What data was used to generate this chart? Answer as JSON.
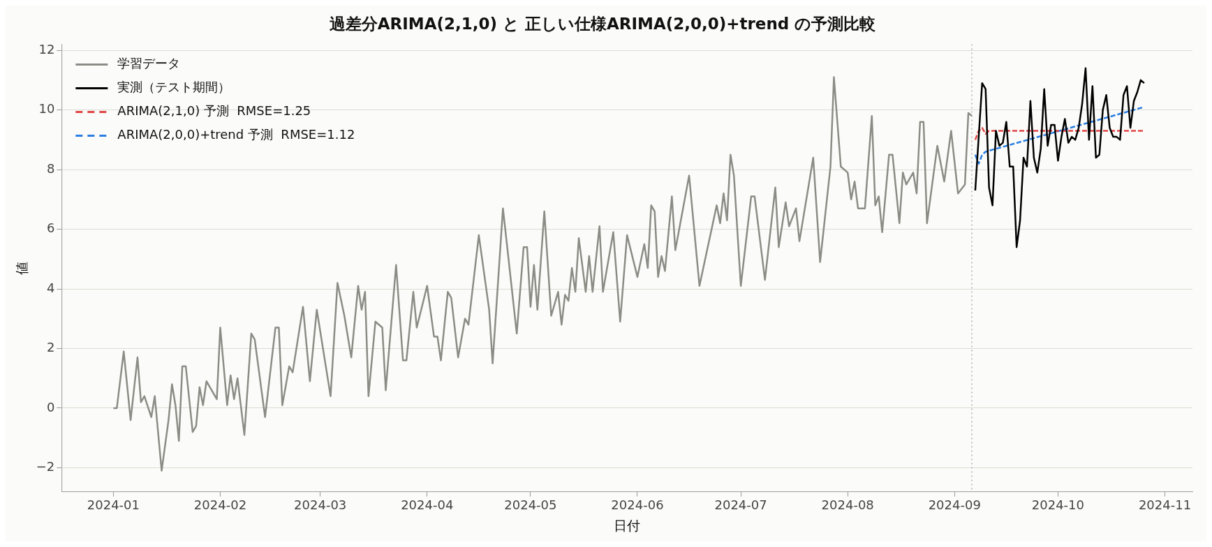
{
  "chart_data": {
    "type": "line",
    "title": "過差分ARIMA(2,1,0) と 正しい仕様ARIMA(2,0,0)+trend の予測比較",
    "xlabel": "日付",
    "ylabel": "値",
    "xlim": [
      "2023-12-17",
      "2024-11-09"
    ],
    "xticks": [
      "2024-01",
      "2024-02",
      "2024-03",
      "2024-04",
      "2024-05",
      "2024-06",
      "2024-07",
      "2024-08",
      "2024-09",
      "2024-10",
      "2024-11"
    ],
    "ylim": [
      -2.8,
      12.2
    ],
    "yticks": [
      -2,
      0,
      2,
      4,
      6,
      8,
      10,
      12
    ],
    "grid": "y",
    "legend": "top left",
    "ref_lines": [
      {
        "axis": "x",
        "value": "2024-09-06",
        "color": "#b0b0b0",
        "line_style": "dotted"
      }
    ],
    "series": [
      {
        "name": "学習データ",
        "color": "#8c8c86",
        "line_style": "solid",
        "x": [
          "2024-01-01",
          "2024-01-02",
          "2024-01-04",
          "2024-01-06",
          "2024-01-08",
          "2024-01-09",
          "2024-01-10",
          "2024-01-12",
          "2024-01-13",
          "2024-01-15",
          "2024-01-17",
          "2024-01-18",
          "2024-01-19",
          "2024-01-20",
          "2024-01-21",
          "2024-01-22",
          "2024-01-24",
          "2024-01-25",
          "2024-01-26",
          "2024-01-27",
          "2024-01-28",
          "2024-01-31",
          "2024-02-01",
          "2024-02-03",
          "2024-02-04",
          "2024-02-05",
          "2024-02-06",
          "2024-02-08",
          "2024-02-10",
          "2024-02-11",
          "2024-02-14",
          "2024-02-17",
          "2024-02-18",
          "2024-02-19",
          "2024-02-21",
          "2024-02-22",
          "2024-02-25",
          "2024-02-27",
          "2024-02-29",
          "2024-03-04",
          "2024-03-06",
          "2024-03-08",
          "2024-03-10",
          "2024-03-12",
          "2024-03-13",
          "2024-03-14",
          "2024-03-15",
          "2024-03-17",
          "2024-03-19",
          "2024-03-20",
          "2024-03-23",
          "2024-03-25",
          "2024-03-26",
          "2024-03-28",
          "2024-03-29",
          "2024-04-01",
          "2024-04-03",
          "2024-04-04",
          "2024-04-05",
          "2024-04-07",
          "2024-04-08",
          "2024-04-10",
          "2024-04-12",
          "2024-04-13",
          "2024-04-16",
          "2024-04-19",
          "2024-04-20",
          "2024-04-23",
          "2024-04-27",
          "2024-04-29",
          "2024-04-30",
          "2024-05-01",
          "2024-05-02",
          "2024-05-03",
          "2024-05-05",
          "2024-05-07",
          "2024-05-09",
          "2024-05-10",
          "2024-05-11",
          "2024-05-12",
          "2024-05-13",
          "2024-05-14",
          "2024-05-15",
          "2024-05-17",
          "2024-05-18",
          "2024-05-19",
          "2024-05-21",
          "2024-05-22",
          "2024-05-25",
          "2024-05-27",
          "2024-05-29",
          "2024-06-01",
          "2024-06-03",
          "2024-06-04",
          "2024-06-05",
          "2024-06-06",
          "2024-06-07",
          "2024-06-08",
          "2024-06-09",
          "2024-06-11",
          "2024-06-12",
          "2024-06-16",
          "2024-06-19",
          "2024-06-24",
          "2024-06-25",
          "2024-06-26",
          "2024-06-27",
          "2024-06-28",
          "2024-06-29",
          "2024-07-01",
          "2024-07-04",
          "2024-07-05",
          "2024-07-08",
          "2024-07-11",
          "2024-07-12",
          "2024-07-14",
          "2024-07-15",
          "2024-07-17",
          "2024-07-18",
          "2024-07-22",
          "2024-07-24",
          "2024-07-27",
          "2024-07-28",
          "2024-07-30",
          "2024-08-01",
          "2024-08-02",
          "2024-08-03",
          "2024-08-04",
          "2024-08-06",
          "2024-08-08",
          "2024-08-09",
          "2024-08-10",
          "2024-08-11",
          "2024-08-13",
          "2024-08-14",
          "2024-08-16",
          "2024-08-17",
          "2024-08-18",
          "2024-08-20",
          "2024-08-21",
          "2024-08-22",
          "2024-08-23",
          "2024-08-24",
          "2024-08-27",
          "2024-08-29",
          "2024-08-31",
          "2024-09-02",
          "2024-09-04",
          "2024-09-05",
          "2024-09-06"
        ],
        "values": [
          0,
          0,
          1.9,
          -0.4,
          1.7,
          0.2,
          0.4,
          -0.3,
          0.4,
          -2.1,
          -0.4,
          0.8,
          0.1,
          -1.1,
          1.4,
          1.4,
          -0.8,
          -0.6,
          0.7,
          0.1,
          0.9,
          0.3,
          2.7,
          0.1,
          1.1,
          0.3,
          1,
          -0.9,
          2.5,
          2.3,
          -0.3,
          2.7,
          2.7,
          0.1,
          1.4,
          1.2,
          3.4,
          0.9,
          3.3,
          0.4,
          4.2,
          3.1,
          1.7,
          4.1,
          3.3,
          3.9,
          0.4,
          2.9,
          2.7,
          0.6,
          4.8,
          1.6,
          1.6,
          3.9,
          2.7,
          4.1,
          2.4,
          2.4,
          1.6,
          3.9,
          3.7,
          1.7,
          3,
          2.8,
          5.8,
          3.3,
          1.5,
          6.7,
          2.5,
          5.4,
          5.4,
          3.4,
          4.8,
          3.3,
          6.6,
          3.1,
          3.9,
          2.8,
          3.8,
          3.6,
          4.7,
          3.9,
          5.7,
          3.9,
          5.1,
          3.9,
          6.1,
          3.9,
          5.9,
          2.9,
          5.8,
          4.4,
          5.5,
          4.7,
          6.8,
          6.6,
          4.4,
          5.1,
          4.6,
          7.1,
          5.3,
          7.8,
          4.1,
          6.8,
          6.2,
          7.2,
          6.3,
          8.5,
          7.8,
          4.1,
          7.1,
          7.1,
          4.3,
          7.4,
          5.4,
          6.9,
          6.1,
          6.7,
          5.6,
          8.4,
          4.9,
          8.1,
          11.1,
          8.1,
          7.9,
          7,
          7.6,
          6.7,
          6.7,
          9.8,
          6.8,
          7.1,
          5.9,
          8.5,
          8.5,
          6.2,
          7.9,
          7.5,
          7.9,
          7.2,
          9.6,
          9.6,
          6.2,
          8.8,
          7.6,
          9.3,
          7.2,
          7.5,
          9.9,
          9.8
        ]
      },
      {
        "name": "実測（テスト期間）",
        "color": "#000000",
        "line_style": "solid",
        "x": [
          "2024-09-07",
          "2024-09-09",
          "2024-09-10",
          "2024-09-11",
          "2024-09-12",
          "2024-09-13",
          "2024-09-14",
          "2024-09-15",
          "2024-09-16",
          "2024-09-17",
          "2024-09-18",
          "2024-09-19",
          "2024-09-20",
          "2024-09-21",
          "2024-09-22",
          "2024-09-23",
          "2024-09-24",
          "2024-09-25",
          "2024-09-26",
          "2024-09-27",
          "2024-09-28",
          "2024-09-29",
          "2024-09-30",
          "2024-10-01",
          "2024-10-02",
          "2024-10-03",
          "2024-10-04",
          "2024-10-05",
          "2024-10-06",
          "2024-10-07",
          "2024-10-08",
          "2024-10-09",
          "2024-10-10",
          "2024-10-11",
          "2024-10-12",
          "2024-10-13",
          "2024-10-14",
          "2024-10-15",
          "2024-10-16",
          "2024-10-17",
          "2024-10-18",
          "2024-10-19",
          "2024-10-20",
          "2024-10-21",
          "2024-10-22",
          "2024-10-23",
          "2024-10-24",
          "2024-10-25",
          "2024-10-26"
        ],
        "values": [
          7.3,
          10.9,
          10.7,
          7.4,
          6.8,
          9.3,
          8.8,
          8.9,
          9.6,
          8.1,
          8.1,
          5.4,
          6.3,
          8.4,
          8.1,
          10.3,
          8.4,
          7.9,
          8.7,
          10.7,
          8.8,
          9.5,
          9.5,
          8.3,
          9.1,
          9.7,
          8.9,
          9.1,
          9,
          9.4,
          10.2,
          11.4,
          9,
          10.8,
          8.4,
          8.5,
          10,
          10.5,
          9.4,
          9.1,
          9.1,
          9,
          10.5,
          10.8,
          9.4,
          10.3,
          10.6,
          11,
          10.9
        ]
      },
      {
        "name": "ARIMA(2,1,0) 予測  RMSE=1.25",
        "color": "#e04646",
        "line_style": "dashed",
        "x": [
          "2024-09-07",
          "2024-09-08",
          "2024-09-09",
          "2024-09-10",
          "2024-09-11",
          "2024-10-26"
        ],
        "values": [
          9,
          9.3,
          9.4,
          9.2,
          9.3,
          9.3
        ]
      },
      {
        "name": "ARIMA(2,0,0)+trend 予測  RMSE=1.12",
        "color": "#2a7de1",
        "line_style": "dashed",
        "x": [
          "2024-09-07",
          "2024-09-08",
          "2024-09-09",
          "2024-09-10",
          "2024-10-26"
        ],
        "values": [
          8.5,
          8.2,
          8.5,
          8.6,
          10.1
        ]
      }
    ]
  }
}
